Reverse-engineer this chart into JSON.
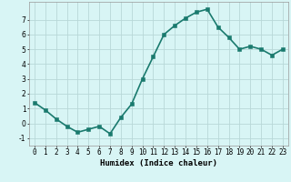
{
  "x": [
    0,
    1,
    2,
    3,
    4,
    5,
    6,
    7,
    8,
    9,
    10,
    11,
    12,
    13,
    14,
    15,
    16,
    17,
    18,
    19,
    20,
    21,
    22,
    23
  ],
  "y": [
    1.4,
    0.9,
    0.3,
    -0.2,
    -0.6,
    -0.4,
    -0.2,
    -0.7,
    0.4,
    1.3,
    3.0,
    4.5,
    6.0,
    6.6,
    7.1,
    7.5,
    7.7,
    6.5,
    5.8,
    5.0,
    5.2,
    5.0,
    4.6,
    5.0
  ],
  "line_color": "#1a7a6e",
  "marker_color": "#1a7a6e",
  "bg_color": "#d8f5f5",
  "grid_color": "#b8d8d8",
  "xlabel": "Humidex (Indice chaleur)",
  "xlim": [
    -0.5,
    23.5
  ],
  "ylim": [
    -1.5,
    8.2
  ],
  "xticks": [
    0,
    1,
    2,
    3,
    4,
    5,
    6,
    7,
    8,
    9,
    10,
    11,
    12,
    13,
    14,
    15,
    16,
    17,
    18,
    19,
    20,
    21,
    22,
    23
  ],
  "yticks": [
    -1,
    0,
    1,
    2,
    3,
    4,
    5,
    6,
    7
  ],
  "xlabel_fontsize": 6.5,
  "tick_fontsize": 5.5,
  "linewidth": 1.2,
  "markersize": 2.2
}
